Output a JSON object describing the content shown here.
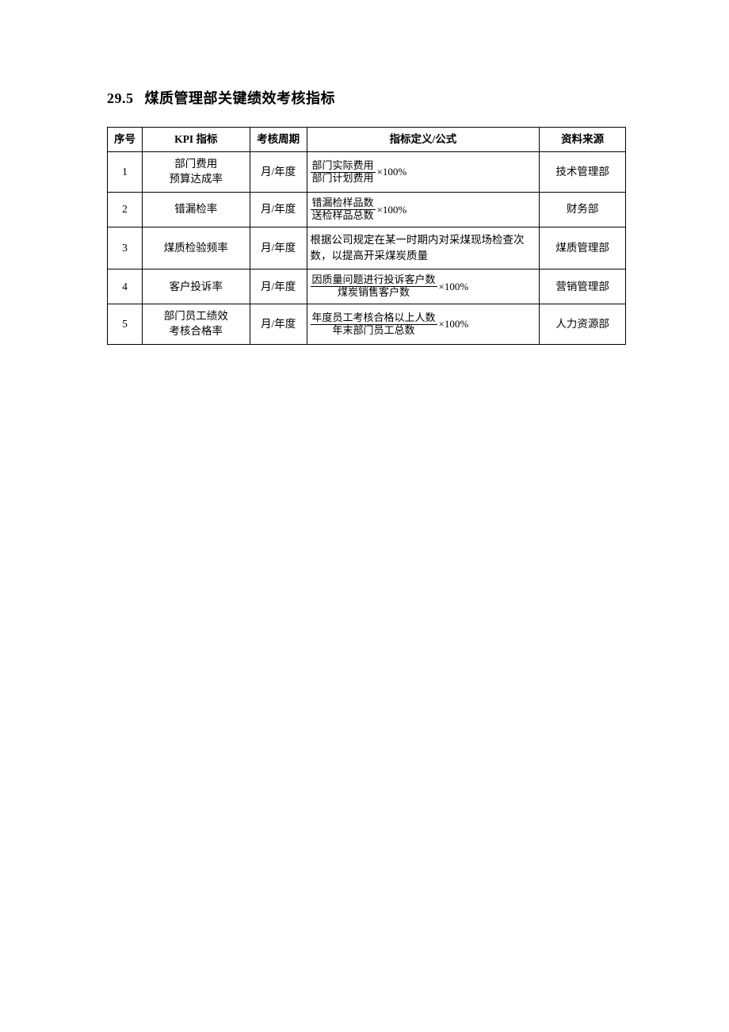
{
  "section": {
    "number": "29.5",
    "title": "煤质管理部关键绩效考核指标"
  },
  "table": {
    "headers": {
      "seq": "序号",
      "kpi": "KPI 指标",
      "period": "考核周期",
      "formula": "指标定义/公式",
      "source": "资料来源"
    },
    "rows": [
      {
        "seq": "1",
        "kpi_line1": "部门费用",
        "kpi_line2": "预算达成率",
        "period": "月/年度",
        "formula_type": "fraction",
        "numerator": "部门实际费用",
        "denominator": "部门计划费用",
        "suffix": "×100%",
        "source": "技术管理部"
      },
      {
        "seq": "2",
        "kpi_line1": "错漏检率",
        "kpi_line2": "",
        "period": "月/年度",
        "formula_type": "fraction",
        "numerator": "错漏检样品数",
        "denominator": "送检样品总数",
        "suffix": "×100%",
        "source": "财务部"
      },
      {
        "seq": "3",
        "kpi_line1": "煤质检验频率",
        "kpi_line2": "",
        "period": "月/年度",
        "formula_type": "text",
        "text": "根据公司规定在某一时期内对采煤现场检查次数，以提高开采煤炭质量",
        "source": "煤质管理部"
      },
      {
        "seq": "4",
        "kpi_line1": "客户投诉率",
        "kpi_line2": "",
        "period": "月/年度",
        "formula_type": "fraction",
        "numerator": "因质量问题进行投诉客户数",
        "denominator": "煤炭销售客户数",
        "suffix": "×100%",
        "source": "营销管理部"
      },
      {
        "seq": "5",
        "kpi_line1": "部门员工绩效",
        "kpi_line2": "考核合格率",
        "period": "月/年度",
        "formula_type": "fraction",
        "numerator": "年度员工考核合格以上人数",
        "denominator": "年末部门员工总数",
        "suffix": "×100%",
        "source": "人力资源部"
      }
    ]
  }
}
